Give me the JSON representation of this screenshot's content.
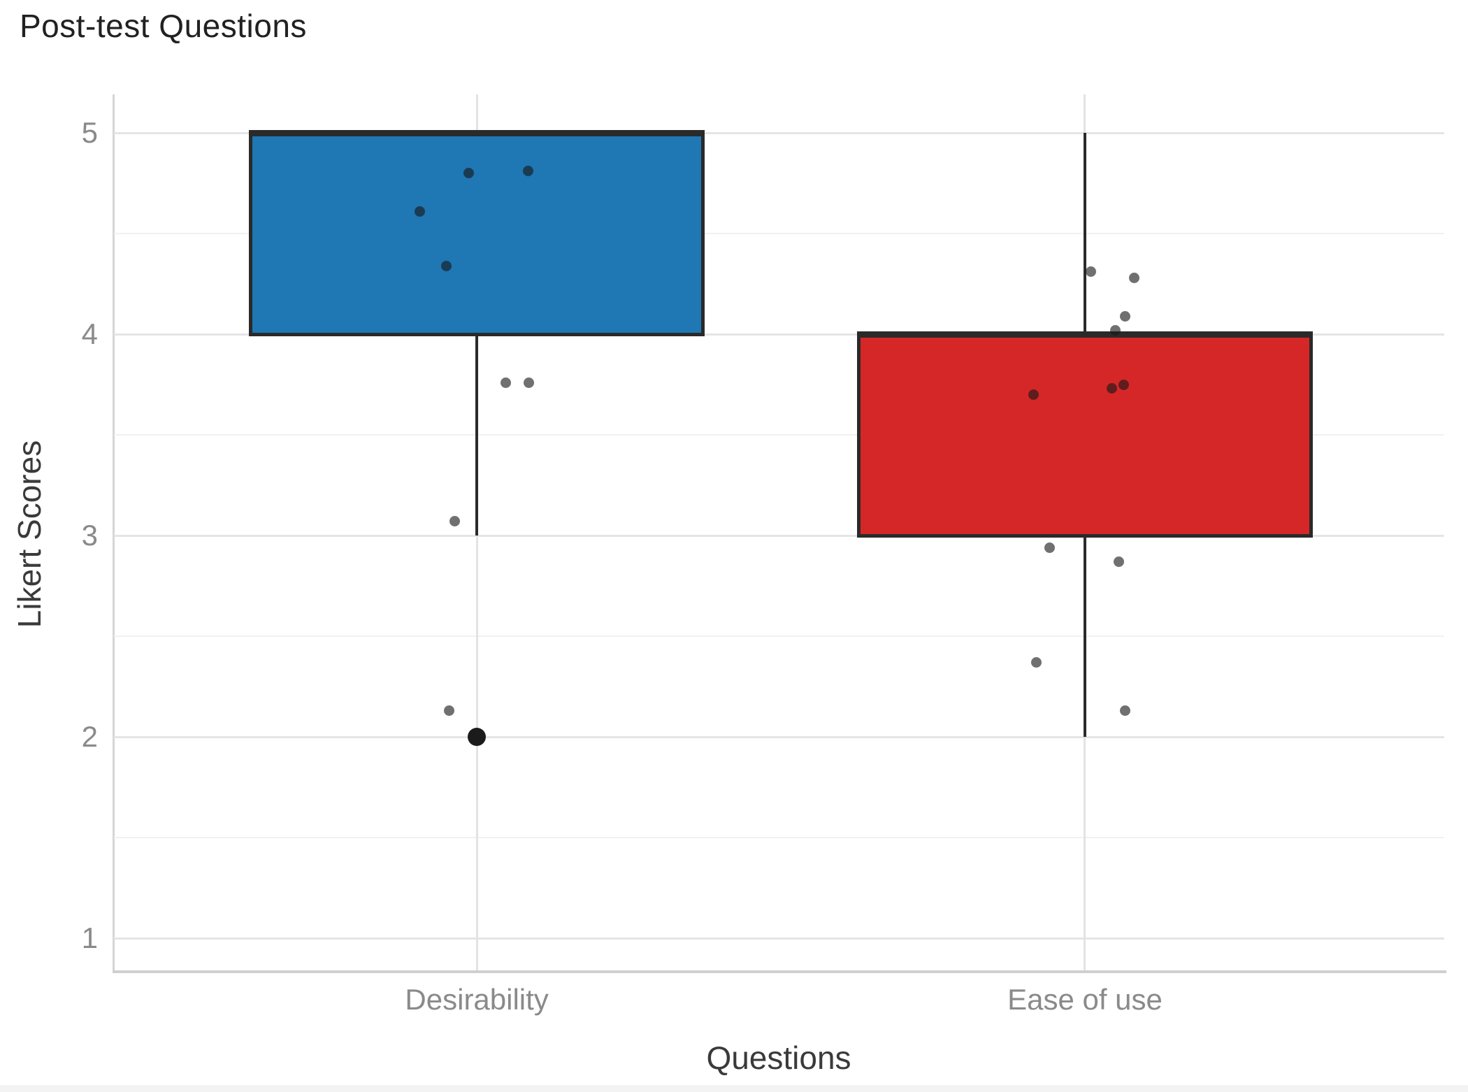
{
  "title": "Post-test Questions",
  "y_axis": {
    "label": "Likert Scores",
    "tick_labels": [
      "5",
      "4",
      "3",
      "2",
      "1"
    ]
  },
  "x_axis": {
    "label": "Questions",
    "categories": [
      "Desirability",
      "Ease of use"
    ]
  },
  "colors": {
    "desirability_fill": "#1f77b4",
    "ease_of_use_fill": "#d62728",
    "box_border": "#2a2a2a",
    "gridline_major": "#e5e5e5",
    "gridline_minor": "#f1f1f1",
    "point": "rgba(25,25,25,0.62)",
    "outlier": "#1b1b1b"
  },
  "chart_data": {
    "type": "box",
    "title": "Post-test Questions",
    "xlabel": "Questions",
    "ylabel": "Likert Scores",
    "categories": [
      "Desirability",
      "Ease of use"
    ],
    "ylim": [
      0.81,
      5.19
    ],
    "y_major_ticks": [
      1,
      2,
      3,
      4,
      5
    ],
    "y_minor_ticks": [
      1.5,
      2.5,
      3.5,
      4.5
    ],
    "grid": "horizontal major and minor lines, vertical line at each category center",
    "legend": "none",
    "series": [
      {
        "name": "Desirability",
        "color": "#1f77b4",
        "center_frac": 0.2728,
        "box": {
          "whisker_low": 3.0,
          "q1": 4.0,
          "median": 5.0,
          "q3": 5.0,
          "whisker_high": 5.0
        },
        "outliers": [
          2.0
        ],
        "points": [
          [
            -12,
            4.8
          ],
          [
            73,
            4.81
          ],
          [
            -82,
            4.61
          ],
          [
            -44,
            4.34
          ],
          [
            41,
            3.76
          ],
          [
            74,
            3.76
          ],
          [
            -32,
            3.07
          ],
          [
            -40,
            2.13
          ]
        ]
      },
      {
        "name": "Ease of use",
        "color": "#d62728",
        "center_frac": 0.7299,
        "box": {
          "whisker_low": 2.0,
          "q1": 3.0,
          "median": 4.0,
          "q3": 4.0,
          "whisker_high": 5.0
        },
        "outliers": [],
        "points": [
          [
            9,
            4.31
          ],
          [
            71,
            4.28
          ],
          [
            58,
            4.09
          ],
          [
            44,
            4.02
          ],
          [
            -73,
            3.7
          ],
          [
            39,
            3.73
          ],
          [
            56,
            3.75
          ],
          [
            -50,
            2.94
          ],
          [
            49,
            2.87
          ],
          [
            -69,
            2.37
          ],
          [
            58,
            2.13
          ]
        ]
      }
    ]
  }
}
